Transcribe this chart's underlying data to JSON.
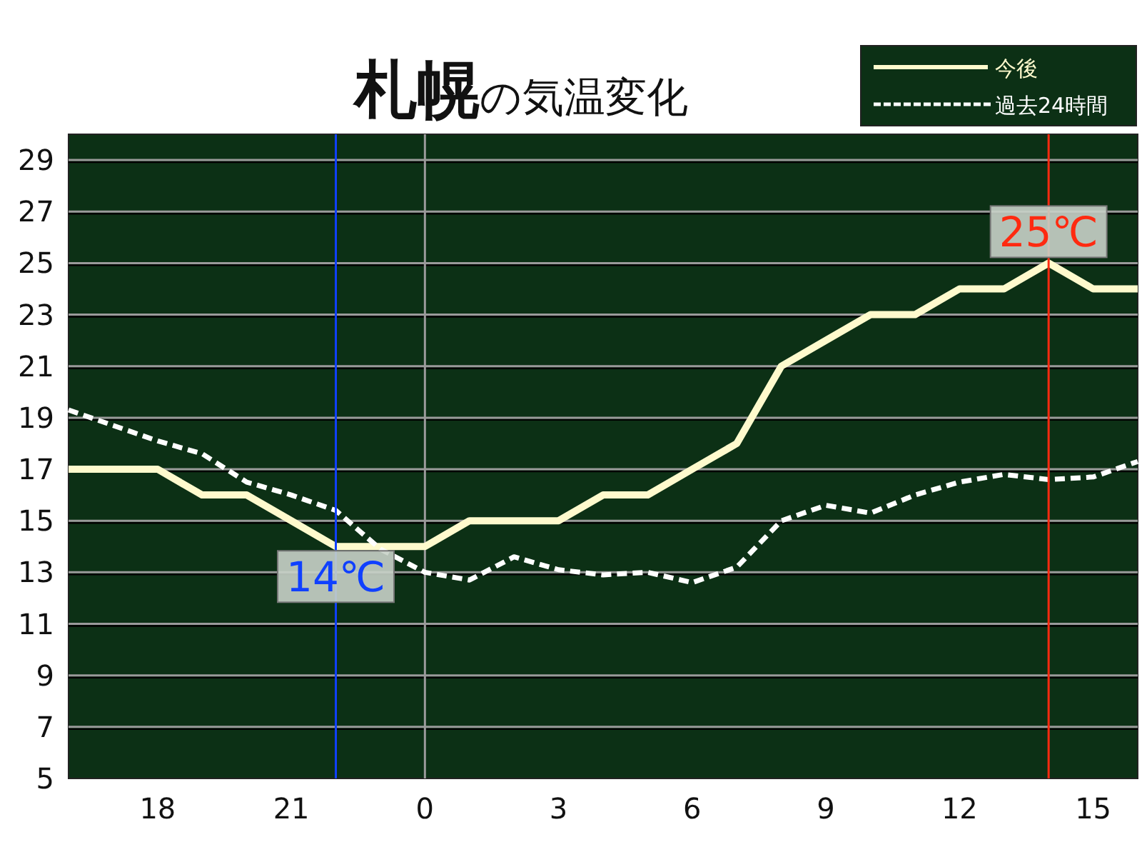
{
  "chart_data": {
    "type": "line",
    "title": "札幌",
    "subtitle": "の気温変化",
    "categories": [
      null,
      null,
      "18",
      null,
      null,
      "21",
      null,
      null,
      "0",
      null,
      null,
      "3",
      null,
      null,
      "6",
      null,
      null,
      "9",
      null,
      null,
      "12",
      null,
      null,
      "15",
      null
    ],
    "series": [
      {
        "name": "今後",
        "color": "#fffacd",
        "line_style": "solid",
        "values": [
          17,
          17,
          17,
          16,
          16,
          15,
          14,
          14,
          14,
          15,
          15,
          15,
          16,
          16,
          17,
          18,
          21,
          22,
          23,
          23,
          24,
          24,
          25,
          24,
          24
        ]
      },
      {
        "name": "過去24時間",
        "color": "#ffffff",
        "line_style": "dashed",
        "values": [
          19.3,
          18.7,
          18.1,
          17.6,
          16.5,
          16.0,
          15.4,
          13.9,
          13.0,
          12.7,
          13.6,
          13.1,
          12.9,
          13.0,
          12.6,
          13.2,
          15.0,
          15.6,
          15.3,
          16.0,
          16.5,
          16.8,
          16.6,
          16.7,
          17.3
        ]
      }
    ],
    "ylim": [
      5,
      30
    ],
    "yticks": [
      5,
      7,
      9,
      11,
      13,
      15,
      17,
      19,
      21,
      23,
      25,
      27,
      29
    ],
    "grid": "y",
    "legend": "top right",
    "marker": "none",
    "ref_lines": [
      {
        "axis": "x",
        "value": "0",
        "color": "#9a9a9a"
      }
    ],
    "annotations": [
      {
        "text": "14℃",
        "y": 14
      },
      {
        "text": "25℃",
        "y": 25
      }
    ]
  }
}
